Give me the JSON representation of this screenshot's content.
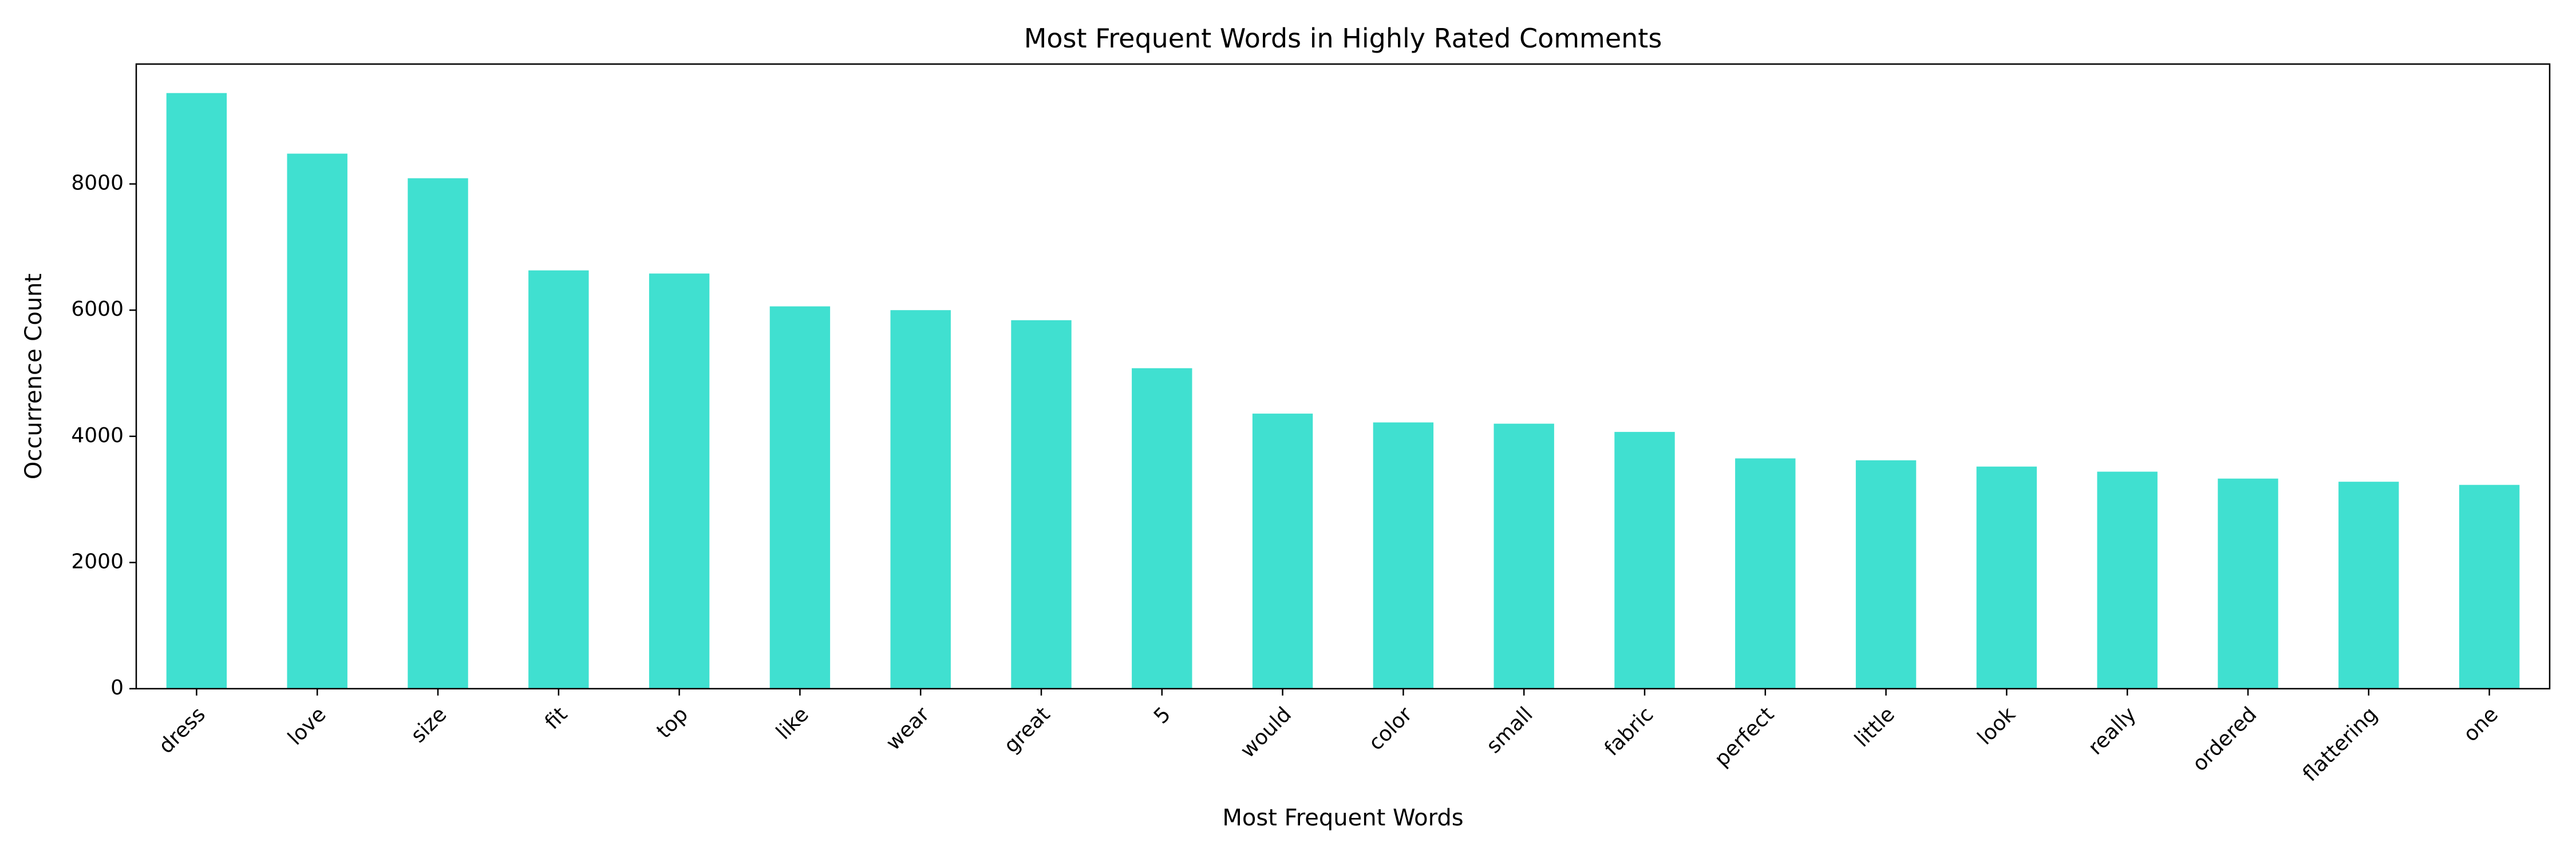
{
  "chart_data": {
    "type": "bar",
    "title": "Most Frequent Words in Highly Rated Comments",
    "xlabel": "Most Frequent Words",
    "ylabel": "Occurrence Count",
    "categories": [
      "dress",
      "love",
      "size",
      "fit",
      "top",
      "like",
      "wear",
      "great",
      "5",
      "would",
      "color",
      "small",
      "fabric",
      "perfect",
      "little",
      "look",
      "really",
      "ordered",
      "flattering",
      "one"
    ],
    "values": [
      9440,
      8480,
      8090,
      6630,
      6580,
      6060,
      6000,
      5840,
      5080,
      4360,
      4220,
      4200,
      4070,
      3650,
      3620,
      3520,
      3440,
      3330,
      3280,
      3230
    ],
    "ylim": [
      0,
      9900
    ],
    "yticks": [
      0,
      2000,
      4000,
      6000,
      8000
    ],
    "grid": false,
    "legend": "none",
    "bar_color": "#40E0D0"
  }
}
